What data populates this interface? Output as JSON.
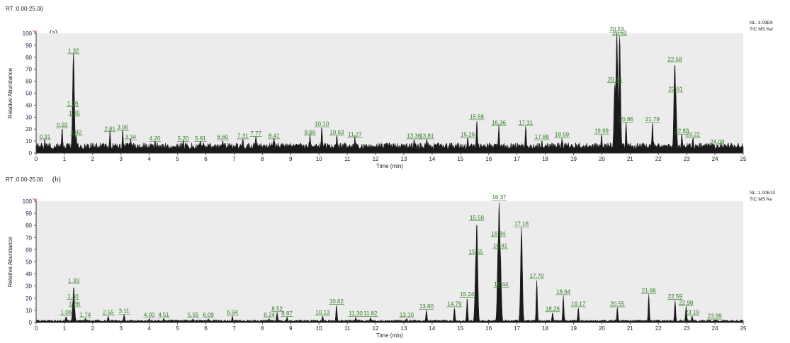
{
  "chart_data": [
    {
      "type": "line",
      "panel_label": "(a)",
      "range_label": "RT :0.00-25.00",
      "nl_label": "NL: 3.09E9",
      "trace_label": "TIC MS Kw",
      "xlabel": "Time (min)",
      "ylabel": "Relative Abundance",
      "xlim": [
        0,
        25
      ],
      "ylim": [
        0,
        100
      ],
      "x_ticks": [
        "0",
        "1",
        "2",
        "3",
        "4",
        "5",
        "6",
        "7",
        "8",
        "9",
        "10",
        "11",
        "12",
        "13",
        "14",
        "15",
        "16",
        "17",
        "18",
        "19",
        "20",
        "21",
        "22",
        "23",
        "24",
        "25"
      ],
      "y_ticks": [
        "0",
        "10",
        "20",
        "30",
        "40",
        "50",
        "60",
        "70",
        "80",
        "90",
        "100"
      ],
      "baseline": 6,
      "peaks": [
        {
          "x": 0.31,
          "y": 10,
          "label": "0.31"
        },
        {
          "x": 0.92,
          "y": 20,
          "label": "0.92"
        },
        {
          "x": 1.29,
          "y": 38,
          "label": "1.29"
        },
        {
          "x": 1.32,
          "y": 82,
          "label": "1.32"
        },
        {
          "x": 1.35,
          "y": 30,
          "label": "1.35"
        },
        {
          "x": 1.42,
          "y": 14,
          "label": "1.42"
        },
        {
          "x": 2.61,
          "y": 17,
          "label": "2.61"
        },
        {
          "x": 3.06,
          "y": 18,
          "label": "3.06"
        },
        {
          "x": 3.34,
          "y": 10,
          "label": "3.34"
        },
        {
          "x": 4.2,
          "y": 9,
          "label": "4.20"
        },
        {
          "x": 5.2,
          "y": 9,
          "label": "5.20"
        },
        {
          "x": 5.81,
          "y": 9,
          "label": "5.81"
        },
        {
          "x": 6.6,
          "y": 10,
          "label": "6.60"
        },
        {
          "x": 7.31,
          "y": 11,
          "label": "7.31"
        },
        {
          "x": 7.77,
          "y": 13,
          "label": "7.77"
        },
        {
          "x": 8.41,
          "y": 11,
          "label": "8.41"
        },
        {
          "x": 9.68,
          "y": 14,
          "label": "9.68"
        },
        {
          "x": 10.1,
          "y": 21,
          "label": "10.10"
        },
        {
          "x": 10.63,
          "y": 14,
          "label": "10.63"
        },
        {
          "x": 11.27,
          "y": 12,
          "label": "11.27"
        },
        {
          "x": 13.36,
          "y": 11,
          "label": "13.36"
        },
        {
          "x": 13.81,
          "y": 11,
          "label": "13.81"
        },
        {
          "x": 15.26,
          "y": 12,
          "label": "15.26"
        },
        {
          "x": 15.58,
          "y": 27,
          "label": "15.58"
        },
        {
          "x": 16.36,
          "y": 22,
          "label": "16.36"
        },
        {
          "x": 17.31,
          "y": 22,
          "label": "17.31"
        },
        {
          "x": 17.88,
          "y": 10,
          "label": "17.88"
        },
        {
          "x": 18.59,
          "y": 12,
          "label": "18.59"
        },
        {
          "x": 19.99,
          "y": 15,
          "label": "19.99"
        },
        {
          "x": 20.46,
          "y": 58,
          "label": "20.46"
        },
        {
          "x": 20.53,
          "y": 100,
          "label": "20.53"
        },
        {
          "x": 20.63,
          "y": 97,
          "label": "20.63"
        },
        {
          "x": 20.86,
          "y": 25,
          "label": "20.86"
        },
        {
          "x": 21.79,
          "y": 25,
          "label": "21.79"
        },
        {
          "x": 22.58,
          "y": 75,
          "label": "22.58"
        },
        {
          "x": 22.61,
          "y": 50,
          "label": "22.61"
        },
        {
          "x": 22.83,
          "y": 15,
          "label": "22.83"
        },
        {
          "x": 23.22,
          "y": 12,
          "label": "23.22"
        },
        {
          "x": 24.08,
          "y": 6,
          "label": "24.08"
        }
      ]
    },
    {
      "type": "line",
      "panel_label": "(b)",
      "range_label": "RT :0.00-25.00",
      "nl_label": "NL: 1.00E10",
      "trace_label": "TIC MS Ke",
      "xlabel": "Time (min)",
      "ylabel": "Relative Abundance",
      "xlim": [
        0,
        25
      ],
      "ylim": [
        0,
        100
      ],
      "x_ticks": [
        "0",
        "1",
        "2",
        "3",
        "4",
        "5",
        "6",
        "7",
        "8",
        "9",
        "10",
        "11",
        "12",
        "13",
        "14",
        "15",
        "16",
        "17",
        "18",
        "19",
        "20",
        "21",
        "22",
        "23",
        "24",
        "25"
      ],
      "y_ticks": [
        "0",
        "10",
        "20",
        "30",
        "40",
        "50",
        "60",
        "70",
        "80",
        "90",
        "100"
      ],
      "baseline": 1.5,
      "peaks": [
        {
          "x": 1.06,
          "y": 5,
          "label": "1.06"
        },
        {
          "x": 1.3,
          "y": 18,
          "label": "1.30"
        },
        {
          "x": 1.33,
          "y": 31,
          "label": "1.33"
        },
        {
          "x": 1.36,
          "y": 12,
          "label": "1.36"
        },
        {
          "x": 1.74,
          "y": 3,
          "label": "1.74"
        },
        {
          "x": 2.55,
          "y": 5,
          "label": "2.55"
        },
        {
          "x": 3.11,
          "y": 6,
          "label": "3.11"
        },
        {
          "x": 4.0,
          "y": 3,
          "label": "4.00"
        },
        {
          "x": 4.51,
          "y": 3,
          "label": "4.51"
        },
        {
          "x": 5.55,
          "y": 3,
          "label": "5.55"
        },
        {
          "x": 6.09,
          "y": 3,
          "label": "6.09"
        },
        {
          "x": 6.94,
          "y": 5,
          "label": "6.94"
        },
        {
          "x": 8.24,
          "y": 3,
          "label": "8.24"
        },
        {
          "x": 8.52,
          "y": 8,
          "label": "8.52"
        },
        {
          "x": 8.87,
          "y": 4,
          "label": "8.87"
        },
        {
          "x": 10.13,
          "y": 5,
          "label": "10.13"
        },
        {
          "x": 10.62,
          "y": 14,
          "label": "10.62"
        },
        {
          "x": 11.3,
          "y": 4,
          "label": "11.30"
        },
        {
          "x": 11.82,
          "y": 4,
          "label": "11.82"
        },
        {
          "x": 13.1,
          "y": 3,
          "label": "13.10"
        },
        {
          "x": 13.8,
          "y": 10,
          "label": "13.80"
        },
        {
          "x": 14.79,
          "y": 12,
          "label": "14.79"
        },
        {
          "x": 15.24,
          "y": 20,
          "label": "15.24"
        },
        {
          "x": 15.55,
          "y": 55,
          "label": "15.55"
        },
        {
          "x": 15.58,
          "y": 83,
          "label": "15.58"
        },
        {
          "x": 16.34,
          "y": 70,
          "label": "16.34"
        },
        {
          "x": 16.37,
          "y": 100,
          "label": "16.37"
        },
        {
          "x": 16.41,
          "y": 60,
          "label": "16.41"
        },
        {
          "x": 16.44,
          "y": 28,
          "label": "16.44"
        },
        {
          "x": 17.16,
          "y": 78,
          "label": "17.16"
        },
        {
          "x": 17.7,
          "y": 35,
          "label": "17.70"
        },
        {
          "x": 18.26,
          "y": 8,
          "label": "18.26"
        },
        {
          "x": 18.64,
          "y": 22,
          "label": "18.64"
        },
        {
          "x": 19.17,
          "y": 12,
          "label": "19.17"
        },
        {
          "x": 20.55,
          "y": 12,
          "label": "20.55"
        },
        {
          "x": 21.66,
          "y": 23,
          "label": "21.66"
        },
        {
          "x": 22.59,
          "y": 18,
          "label": "22.59"
        },
        {
          "x": 22.98,
          "y": 13,
          "label": "22.98"
        },
        {
          "x": 23.19,
          "y": 5,
          "label": "23.19"
        },
        {
          "x": 23.99,
          "y": 2,
          "label": "23.99"
        }
      ]
    }
  ],
  "colors": {
    "plot_background": "#ececec",
    "trace": "#1a1a1a",
    "peak_label": "#2e7d1f",
    "axis_text": "#222244"
  }
}
